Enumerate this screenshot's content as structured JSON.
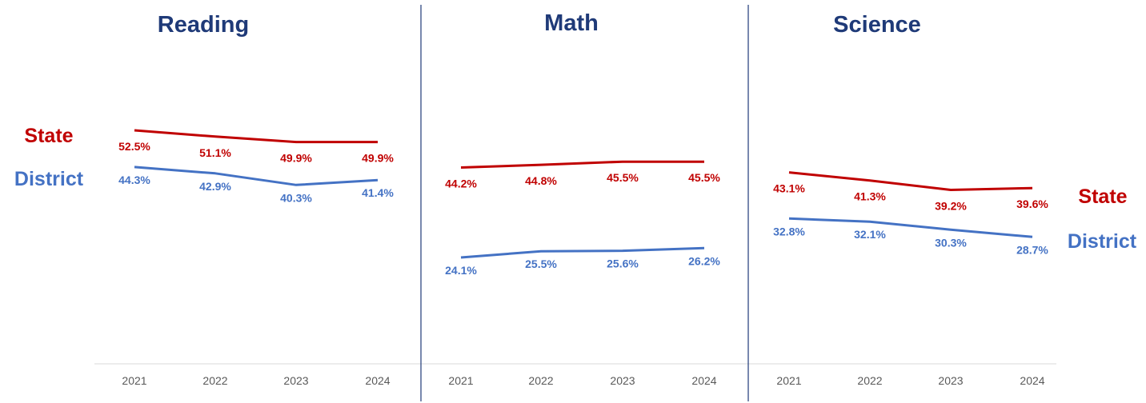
{
  "colors": {
    "state": "#c00000",
    "district": "#4472c4",
    "title": "#1f3a78"
  },
  "legend": {
    "left": {
      "state": "State",
      "district": "District"
    },
    "right": {
      "state": "State",
      "district": "District"
    }
  },
  "chart_data": [
    {
      "type": "line",
      "title": "Reading",
      "categories": [
        "2021",
        "2022",
        "2023",
        "2024"
      ],
      "series": [
        {
          "name": "State",
          "values": [
            52.5,
            51.1,
            49.9,
            49.9
          ],
          "labels": [
            "52.5%",
            "51.1%",
            "49.9%",
            "49.9%"
          ]
        },
        {
          "name": "District",
          "values": [
            44.3,
            42.9,
            40.3,
            41.4
          ],
          "labels": [
            "44.3%",
            "42.9%",
            "40.3%",
            "41.4%"
          ]
        }
      ]
    },
    {
      "type": "line",
      "title": "Math",
      "categories": [
        "2021",
        "2022",
        "2023",
        "2024"
      ],
      "series": [
        {
          "name": "State",
          "values": [
            44.2,
            44.8,
            45.5,
            45.5
          ],
          "labels": [
            "44.2%",
            "44.8%",
            "45.5%",
            "45.5%"
          ]
        },
        {
          "name": "District",
          "values": [
            24.1,
            25.5,
            25.6,
            26.2
          ],
          "labels": [
            "24.1%",
            "25.5%",
            "25.6%",
            "26.2%"
          ]
        }
      ]
    },
    {
      "type": "line",
      "title": "Science",
      "categories": [
        "2021",
        "2022",
        "2023",
        "2024"
      ],
      "series": [
        {
          "name": "State",
          "values": [
            43.1,
            41.3,
            39.2,
            39.6
          ],
          "labels": [
            "43.1%",
            "41.3%",
            "39.2%",
            "39.6%"
          ]
        },
        {
          "name": "District",
          "values": [
            32.8,
            32.1,
            30.3,
            28.7
          ],
          "labels": [
            "32.8%",
            "32.1%",
            "30.3%",
            "28.7%"
          ]
        }
      ]
    }
  ]
}
